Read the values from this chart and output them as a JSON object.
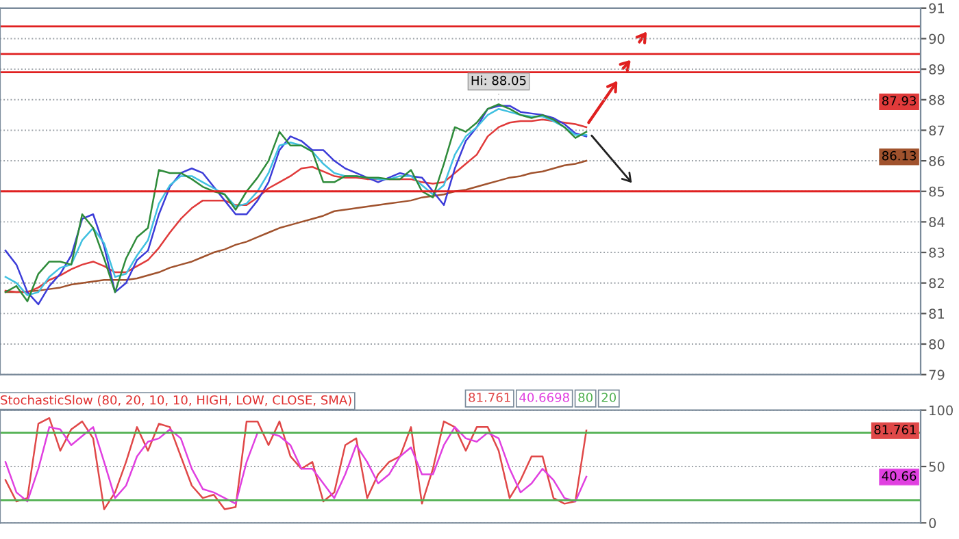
{
  "chart_data": [
    {
      "type": "line",
      "categories": [
        null,
        null,
        null,
        null,
        null,
        null,
        null,
        null,
        null,
        null,
        null,
        null,
        null,
        null,
        null,
        null,
        null,
        null,
        null,
        null,
        null,
        null,
        null,
        null,
        null,
        null,
        null,
        null,
        null,
        null,
        null,
        null,
        null,
        null,
        null,
        null,
        null,
        null,
        null,
        null,
        null,
        null,
        null,
        null,
        null,
        null,
        null,
        null,
        null,
        null,
        null,
        null,
        null,
        null,
        null,
        null,
        null,
        null,
        null,
        null,
        null,
        null,
        null,
        null,
        null,
        null,
        null,
        null,
        null,
        null,
        null,
        null,
        null,
        null,
        null,
        null,
        null,
        null,
        null,
        null,
        null,
        null,
        null,
        null
      ],
      "series": [
        {
          "color": "#a0522d",
          "values": [
            81.7,
            81.7,
            81.72,
            81.75,
            81.8,
            81.85,
            81.95,
            82.0,
            82.05,
            82.1,
            82.1,
            82.1,
            82.15,
            82.25,
            82.35,
            82.5,
            82.6,
            82.7,
            82.85,
            83.0,
            83.1,
            83.25,
            83.35,
            83.5,
            83.65,
            83.8,
            83.9,
            84.0,
            84.1,
            84.2,
            84.35,
            84.4,
            84.45,
            84.5,
            84.55,
            84.6,
            84.65,
            84.7,
            84.8,
            84.85,
            84.9,
            85.0,
            85.05,
            85.15,
            85.25,
            85.35,
            85.45,
            85.5,
            85.6,
            85.65,
            85.75,
            85.85,
            85.9,
            86.0,
            null,
            null,
            null,
            null,
            null,
            null,
            null,
            null,
            null,
            null,
            null,
            null,
            null,
            null,
            null,
            null,
            null,
            null,
            null,
            null,
            null,
            null,
            null,
            null,
            null,
            null,
            null,
            null,
            null,
            null
          ]
        },
        {
          "color": "#e03a3a",
          "values": [
            81.75,
            81.7,
            81.7,
            81.85,
            82.1,
            82.25,
            82.45,
            82.6,
            82.7,
            82.55,
            82.35,
            82.35,
            82.55,
            82.75,
            83.15,
            83.65,
            84.1,
            84.45,
            84.7,
            84.7,
            84.7,
            84.55,
            84.55,
            84.8,
            85.1,
            85.3,
            85.5,
            85.75,
            85.8,
            85.65,
            85.5,
            85.45,
            85.45,
            85.4,
            85.4,
            85.4,
            85.4,
            85.4,
            85.3,
            85.25,
            85.3,
            85.6,
            85.9,
            86.2,
            86.8,
            87.1,
            87.25,
            87.3,
            87.3,
            87.35,
            87.3,
            87.25,
            87.2,
            87.1,
            null,
            null,
            null,
            null,
            null,
            null,
            null,
            null,
            null,
            null,
            null,
            null,
            null,
            null,
            null,
            null,
            null,
            null,
            null,
            null,
            null,
            null,
            null,
            null,
            null,
            null,
            null,
            null,
            null,
            null
          ]
        },
        {
          "color": "#3c3cd8",
          "values": [
            83.06,
            82.6,
            81.7,
            81.3,
            81.9,
            82.3,
            82.9,
            84.1,
            84.25,
            83.2,
            81.7,
            82.0,
            82.75,
            83.06,
            84.25,
            85.15,
            85.6,
            85.75,
            85.6,
            85.15,
            84.7,
            84.25,
            84.25,
            84.7,
            85.3,
            86.35,
            86.8,
            86.65,
            86.35,
            86.35,
            86.0,
            85.75,
            85.6,
            85.45,
            85.3,
            85.45,
            85.6,
            85.5,
            85.45,
            85.0,
            84.55,
            85.75,
            86.65,
            87.1,
            87.7,
            87.8,
            87.8,
            87.6,
            87.55,
            87.5,
            87.4,
            87.2,
            86.9,
            86.8,
            null,
            null,
            null,
            null,
            null,
            null,
            null,
            null,
            null,
            null,
            null,
            null,
            null,
            null,
            null,
            null,
            null,
            null,
            null,
            null,
            null,
            null,
            null,
            null,
            null,
            null,
            null,
            null,
            null,
            null
          ]
        },
        {
          "color": "#40c0e0",
          "values": [
            82.2,
            82.0,
            81.6,
            81.7,
            82.2,
            82.5,
            82.6,
            83.4,
            83.8,
            83.3,
            82.2,
            82.3,
            82.9,
            83.4,
            84.6,
            85.2,
            85.5,
            85.5,
            85.3,
            85.1,
            84.9,
            84.5,
            84.6,
            85.0,
            85.6,
            86.5,
            86.6,
            86.5,
            86.3,
            85.9,
            85.6,
            85.5,
            85.5,
            85.45,
            85.4,
            85.4,
            85.5,
            85.5,
            85.2,
            84.9,
            85.2,
            86.2,
            86.8,
            87.1,
            87.5,
            87.7,
            87.6,
            87.5,
            87.45,
            87.45,
            87.3,
            87.1,
            86.85,
            86.85,
            null,
            null,
            null,
            null,
            null,
            null,
            null,
            null,
            null,
            null,
            null,
            null,
            null,
            null,
            null,
            null,
            null,
            null,
            null,
            null,
            null,
            null,
            null,
            null,
            null,
            null,
            null,
            null,
            null,
            null
          ]
        },
        {
          "color": "#2e8b3a",
          "values": [
            81.7,
            81.9,
            81.4,
            82.3,
            82.7,
            82.7,
            82.6,
            84.25,
            83.8,
            82.8,
            81.7,
            82.8,
            83.5,
            83.8,
            85.7,
            85.6,
            85.6,
            85.4,
            85.15,
            85.0,
            84.9,
            84.4,
            85.0,
            85.45,
            86.0,
            86.95,
            86.5,
            86.5,
            86.3,
            85.3,
            85.3,
            85.5,
            85.5,
            85.45,
            85.45,
            85.4,
            85.4,
            85.7,
            85.0,
            84.8,
            85.9,
            87.1,
            86.95,
            87.25,
            87.7,
            87.85,
            87.7,
            87.5,
            87.4,
            87.5,
            87.35,
            87.1,
            86.75,
            86.95,
            null,
            null,
            null,
            null,
            null,
            null,
            null,
            null,
            null,
            null,
            null,
            null,
            null,
            null,
            null,
            null,
            null,
            null,
            null,
            null,
            null,
            null,
            null,
            null,
            null,
            null,
            null,
            null,
            null,
            null
          ]
        }
      ],
      "ylim": [
        79,
        91
      ],
      "yticks": [
        79,
        80,
        81,
        82,
        83,
        84,
        85,
        86,
        87,
        88,
        89,
        90,
        91
      ],
      "grid": "y",
      "legend": false,
      "tick_labels": "y",
      "ref_lines": [
        {
          "axis": "y",
          "value": 90.4,
          "color": "#e02020"
        },
        {
          "axis": "y",
          "value": 89.5,
          "color": "#e02020"
        },
        {
          "axis": "y",
          "value": 88.9,
          "color": "#e02020"
        },
        {
          "axis": "y",
          "value": 85.0,
          "color": "#e02020"
        }
      ],
      "annotations": [
        {
          "text": "Hi: 88.05",
          "y": 88.05
        },
        {
          "text": "87.93",
          "y": 87.93
        },
        {
          "text": "86.13",
          "y": 86.13
        }
      ]
    },
    {
      "type": "line",
      "title": "StochasticSlow (80, 20, 10, 10, HIGH, LOW, CLOSE, SMA)",
      "categories": [
        null,
        null,
        null,
        null,
        null,
        null,
        null,
        null,
        null,
        null,
        null,
        null,
        null,
        null,
        null,
        null,
        null,
        null,
        null,
        null,
        null,
        null,
        null,
        null,
        null,
        null,
        null,
        null,
        null,
        null,
        null,
        null,
        null,
        null,
        null,
        null,
        null,
        null,
        null,
        null,
        null,
        null,
        null,
        null,
        null,
        null,
        null,
        null,
        null,
        null,
        null,
        null,
        null,
        null,
        null,
        null,
        null,
        null,
        null,
        null,
        null,
        null,
        null,
        null,
        null,
        null,
        null,
        null,
        null,
        null,
        null,
        null,
        null,
        null,
        null,
        null,
        null,
        null,
        null,
        null,
        null,
        null,
        null,
        null
      ],
      "series": [
        {
          "color": "#e04848",
          "values": [
            38,
            19,
            22,
            88,
            93,
            64,
            83,
            90,
            75,
            12,
            27,
            54,
            85,
            64,
            88,
            85,
            59,
            33,
            22,
            25,
            12,
            14,
            90,
            90,
            69,
            90,
            59,
            48,
            54,
            19,
            27,
            69,
            75,
            22,
            43,
            54,
            59,
            85,
            17,
            48,
            90,
            85,
            64,
            85,
            85,
            64,
            22,
            38,
            59,
            59,
            22,
            17,
            19,
            82,
            null,
            null,
            null,
            null,
            null,
            null,
            null,
            null,
            null,
            null,
            null,
            null,
            null,
            null,
            null,
            null,
            null,
            null,
            null,
            null,
            null,
            null,
            null,
            null,
            null,
            null,
            null,
            null,
            null,
            null
          ]
        },
        {
          "color": "#e040e0",
          "values": [
            54,
            27,
            19,
            48,
            85,
            83,
            69,
            77,
            85,
            54,
            22,
            33,
            59,
            72,
            75,
            83,
            75,
            48,
            30,
            27,
            22,
            17,
            54,
            80,
            80,
            77,
            69,
            48,
            48,
            35,
            22,
            43,
            69,
            54,
            35,
            43,
            59,
            67,
            43,
            43,
            69,
            85,
            75,
            72,
            80,
            75,
            48,
            27,
            35,
            48,
            38,
            22,
            19,
            41,
            null,
            null,
            null,
            null,
            null,
            null,
            null,
            null,
            null,
            null,
            null,
            null,
            null,
            null,
            null,
            null,
            null,
            null,
            null,
            null,
            null,
            null,
            null,
            null,
            null,
            null,
            null,
            null,
            null,
            null
          ]
        }
      ],
      "ylim": [
        0,
        100
      ],
      "yticks": [
        0,
        50,
        100
      ],
      "grid": "y",
      "legend": false,
      "tick_labels": "y",
      "ref_lines": [
        {
          "axis": "y",
          "value": 80,
          "color": "#50b050"
        },
        {
          "axis": "y",
          "value": 20,
          "color": "#50b050"
        }
      ],
      "annotations": [
        "81.761",
        "40.6698",
        "80",
        "20",
        {
          "text": "81.761",
          "y": 81.761
        },
        {
          "text": "40.66",
          "y": 40.66
        }
      ]
    }
  ]
}
